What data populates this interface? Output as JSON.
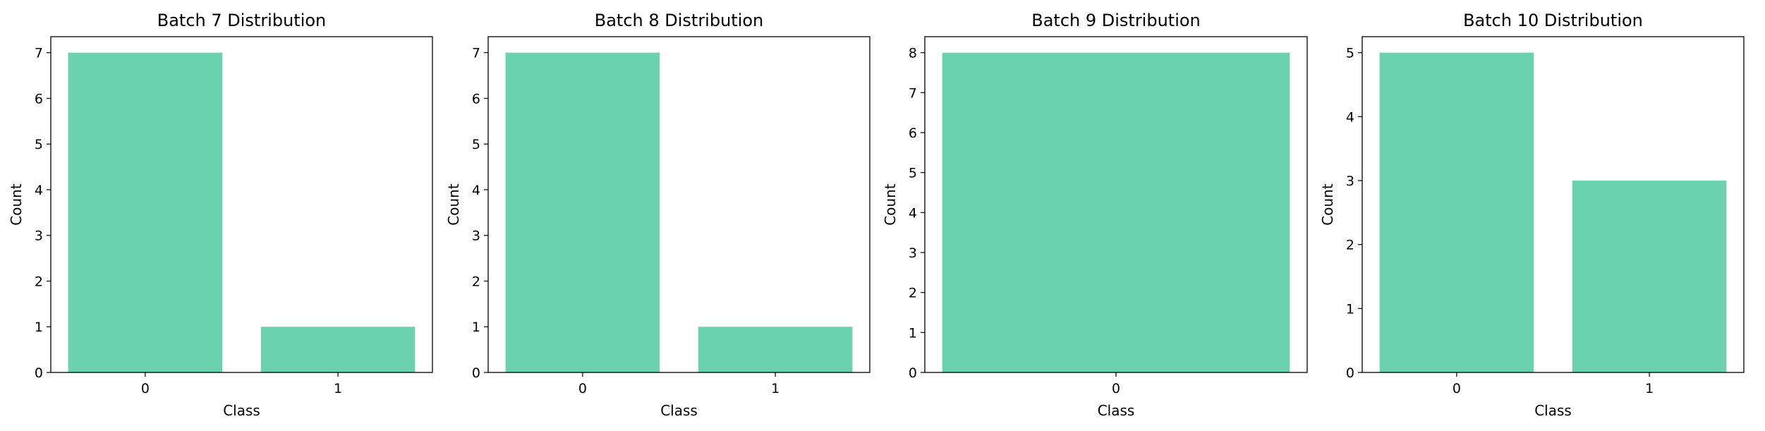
{
  "chart_data": [
    {
      "type": "bar",
      "title": "Batch 7 Distribution",
      "xlabel": "Class",
      "ylabel": "Count",
      "categories": [
        "0",
        "1"
      ],
      "values": [
        7,
        1
      ],
      "ylim": [
        0,
        7.35
      ],
      "yticks": [
        "0",
        "1",
        "2",
        "3",
        "4",
        "5",
        "6",
        "7"
      ],
      "bar_color": "#6bd1ae",
      "grid": false
    },
    {
      "type": "bar",
      "title": "Batch 8 Distribution",
      "xlabel": "Class",
      "ylabel": "Count",
      "categories": [
        "0",
        "1"
      ],
      "values": [
        7,
        1
      ],
      "ylim": [
        0,
        7.35
      ],
      "yticks": [
        "0",
        "1",
        "2",
        "3",
        "4",
        "5",
        "6",
        "7"
      ],
      "bar_color": "#6bd1ae",
      "grid": false
    },
    {
      "type": "bar",
      "title": "Batch 9 Distribution",
      "xlabel": "Class",
      "ylabel": "Count",
      "categories": [
        "0"
      ],
      "values": [
        8
      ],
      "ylim": [
        0,
        8.4
      ],
      "yticks": [
        "0",
        "1",
        "2",
        "3",
        "4",
        "5",
        "6",
        "7",
        "8"
      ],
      "bar_color": "#6bd1ae",
      "grid": false
    },
    {
      "type": "bar",
      "title": "Batch 10 Distribution",
      "xlabel": "Class",
      "ylabel": "Count",
      "categories": [
        "0",
        "1"
      ],
      "values": [
        5,
        3
      ],
      "ylim": [
        0,
        5.25
      ],
      "yticks": [
        "0",
        "1",
        "2",
        "3",
        "4",
        "5"
      ],
      "bar_color": "#6bd1ae",
      "grid": false
    }
  ]
}
